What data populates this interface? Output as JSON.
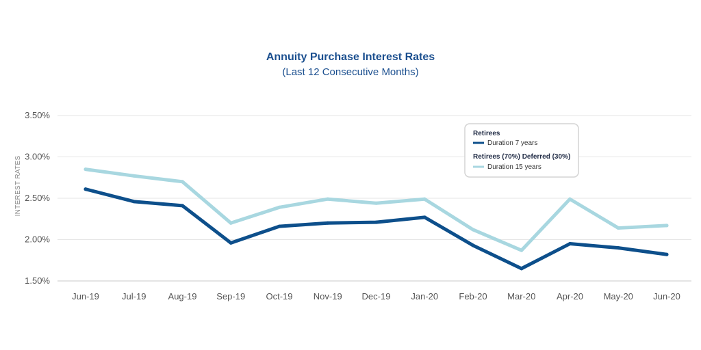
{
  "chart_data": {
    "type": "line",
    "title": "Annuity Purchase Interest Rates",
    "subtitle": "(Last 12 Consecutive Months)",
    "ylabel": "INTEREST RATES",
    "xlabel": "",
    "categories": [
      "Jun-19",
      "Jul-19",
      "Aug-19",
      "Sep-19",
      "Oct-19",
      "Nov-19",
      "Dec-19",
      "Jan-20",
      "Feb-20",
      "Mar-20",
      "Apr-20",
      "May-20",
      "Jun-20"
    ],
    "ylim": [
      1.5,
      3.5
    ],
    "yticks": [
      1.5,
      2.0,
      2.5,
      3.0,
      3.5
    ],
    "ytick_labels": [
      "1.50%",
      "2.00%",
      "2.50%",
      "3.00%",
      "3.50%"
    ],
    "grid": true,
    "legend_position": "top-right",
    "series": [
      {
        "name": "Retirees",
        "legend_detail": "Duration 7 years",
        "color": "#0d4f8b",
        "values": [
          2.61,
          2.46,
          2.41,
          1.96,
          2.16,
          2.2,
          2.21,
          2.27,
          1.93,
          1.65,
          1.95,
          1.9,
          1.82
        ]
      },
      {
        "name": "Retirees (70%) Deferred (30%)",
        "legend_detail": "Duration 15 years",
        "color": "#a8d7e0",
        "values": [
          2.85,
          2.77,
          2.7,
          2.2,
          2.39,
          2.49,
          2.44,
          2.49,
          2.12,
          1.87,
          2.49,
          2.14,
          2.17
        ]
      }
    ]
  }
}
